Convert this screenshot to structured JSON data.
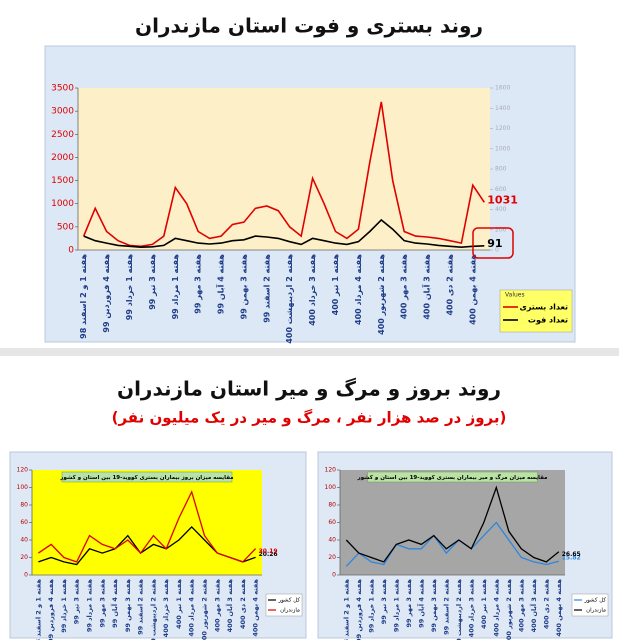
{
  "chart_data": [
    {
      "type": "line",
      "title": "روند بستری و فوت استان مازندران",
      "categories": [
        "هفته 1 و 2 اسفند 98",
        null,
        "هفته 4 فروردین 99",
        null,
        "هفته 1 خرداد 99",
        null,
        "هفته 3 تیر 99",
        null,
        "هفته 1 مرداد 99",
        null,
        "هفته 3 مهر 99",
        null,
        "هفته 4 آبان 99",
        null,
        "هفته 3 بهمن 99",
        null,
        "هفته 2 اسفند 99",
        null,
        "هفته 2 اردیبهشت 400",
        null,
        "هفته 3 خرداد 400",
        null,
        "هفته 1 تیر 400",
        null,
        "هفته 4 مرداد 400",
        null,
        "هفته 2 شهریور 400",
        null,
        "هفته 3 مهر 400",
        null,
        "هفته 3 آبان 400",
        null,
        "هفته 2 دی 400",
        null,
        "هفته 4 بهمن 400",
        null
      ],
      "series": [
        {
          "name": "تعداد بستری",
          "color": "#e00000",
          "values": [
            300,
            900,
            400,
            200,
            100,
            80,
            120,
            300,
            1350,
            1000,
            400,
            250,
            300,
            550,
            600,
            900,
            950,
            850,
            500,
            300,
            1550,
            1000,
            400,
            250,
            450,
            1900,
            3200,
            1500,
            400,
            300,
            280,
            250,
            200,
            150,
            1400,
            1031
          ]
        },
        {
          "name": "تعداد فوت",
          "color": "#000000",
          "values": [
            300,
            200,
            150,
            100,
            80,
            60,
            70,
            100,
            250,
            200,
            150,
            130,
            150,
            200,
            220,
            300,
            280,
            250,
            180,
            120,
            250,
            200,
            150,
            120,
            180,
            400,
            650,
            450,
            200,
            150,
            130,
            100,
            80,
            60,
            80,
            91
          ]
        }
      ],
      "ylim": [
        0,
        3500
      ],
      "yticks": [
        0,
        500,
        1000,
        1500,
        2000,
        2500,
        3000,
        3500
      ],
      "y2lim": [
        0,
        1600
      ],
      "y2ticks": [
        0,
        200,
        400,
        600,
        800,
        1000,
        1200,
        1400,
        1600
      ],
      "legend_title": "Values",
      "legend": "bottom-right"
    },
    {
      "type": "line",
      "title": "مقایسه میزان بروز بیماران بستری کووید-19 بین استان و کشور",
      "categories": [
        "هفته 1 و 2 اسفند 98",
        "هفته 4 فروردین 99",
        "هفته 1 خرداد 99",
        "هفته 3 تیر 99",
        "هفته 1 مرداد 99",
        "هفته 3 مهر 99",
        "هفته 4 آبان 99",
        "هفته 3 بهمن 99",
        "هفته 2 اسفند 99",
        "هفته 2 اردیبهشت 400",
        "هفته 3 خرداد 400",
        "هفته 1 تیر 400",
        "هفته 4 مرداد 400",
        "هفته 2 شهریور 400",
        "هفته 3 مهر 400",
        "هفته 3 آبان 400",
        "هفته 2 دی 400",
        "هفته 4 بهمن 400"
      ],
      "series": [
        {
          "name": "کل کشور",
          "color": "#000000",
          "values": [
            15,
            20,
            15,
            12,
            30,
            25,
            30,
            45,
            25,
            35,
            30,
            40,
            55,
            40,
            25,
            20,
            15,
            20.26
          ]
        },
        {
          "name": "مازندران",
          "color": "#e00000",
          "values": [
            25,
            35,
            20,
            15,
            45,
            35,
            30,
            40,
            25,
            45,
            30,
            65,
            95,
            45,
            25,
            20,
            15,
            30.19
          ]
        }
      ],
      "ylim": [
        0,
        120
      ],
      "yticks": [
        0,
        20,
        40,
        60,
        80,
        100,
        120
      ],
      "legend": "bottom-right"
    },
    {
      "type": "line",
      "title": "مقایسه میزان مرگ و میر بیماران بستری کووید-19 بین استان و کشور",
      "categories": [
        "هفته 1 و 2 اسفند 98",
        "هفته 4 فروردین 99",
        "هفته 1 خرداد 99",
        "هفته 3 تیر 99",
        "هفته 1 مرداد 99",
        "هفته 3 مهر 99",
        "هفته 4 آبان 99",
        "هفته 3 بهمن 99",
        "هفته 2 اسفند 99",
        "هفته 2 اردیبهشت 400",
        "هفته 3 خرداد 400",
        "هفته 1 تیر 400",
        "هفته 4 مرداد 400",
        "هفته 2 شهریور 400",
        "هفته 3 مهر 400",
        "هفته 3 آبان 400",
        "هفته 2 دی 400",
        "هفته 4 بهمن 400"
      ],
      "series": [
        {
          "name": "کل کشور",
          "color": "#2e86de",
          "values": [
            10,
            25,
            15,
            12,
            35,
            30,
            30,
            45,
            25,
            40,
            30,
            45,
            60,
            40,
            20,
            15,
            12,
            15.82
          ]
        },
        {
          "name": "مازندران",
          "color": "#000000",
          "values": [
            40,
            25,
            20,
            15,
            35,
            40,
            35,
            45,
            30,
            40,
            30,
            60,
            100,
            50,
            30,
            20,
            15,
            26.65
          ]
        }
      ],
      "ylim": [
        0,
        120
      ],
      "yticks": [
        0,
        20,
        40,
        60,
        80,
        100,
        120
      ],
      "legend": "bottom-right"
    }
  ],
  "section": {
    "title": "روند بروز و مرگ و میر استان مازندران",
    "subtitle": "(بروز در صد هزار نفر ، مرگ و میر در یک میلیون نفر)"
  }
}
